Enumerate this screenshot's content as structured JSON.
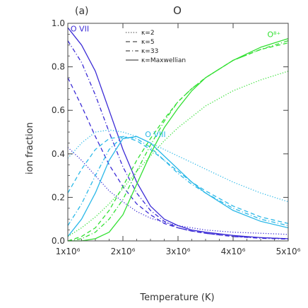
{
  "chart_data": {
    "type": "line",
    "panel_label": "(a)",
    "title": "O",
    "xlabel": "Temperature (K)",
    "ylabel": "ion fraction",
    "xlim": [
      1000000,
      5000000
    ],
    "ylim": [
      0,
      1
    ],
    "xticks": [
      {
        "value": 1000000,
        "label": "1x10⁶"
      },
      {
        "value": 2000000,
        "label": "2x10⁶"
      },
      {
        "value": 3000000,
        "label": "3x10⁶"
      },
      {
        "value": 4000000,
        "label": "4x10⁶"
      },
      {
        "value": 5000000,
        "label": "5x10⁶"
      }
    ],
    "yticks": [
      {
        "value": 0.0,
        "label": "0.0"
      },
      {
        "value": 0.2,
        "label": "0.2"
      },
      {
        "value": 0.4,
        "label": "0.4"
      },
      {
        "value": 0.6,
        "label": "0.6"
      },
      {
        "value": 0.8,
        "label": "0.8"
      },
      {
        "value": 1.0,
        "label": "1.0"
      }
    ],
    "legend_position": "top-center",
    "legend": [
      {
        "label": "κ=2",
        "dash": "dotted"
      },
      {
        "label": "κ=5",
        "dash": "dashed"
      },
      {
        "label": "κ=33",
        "dash": "dashdot"
      },
      {
        "label": "κ=Maxwellian",
        "dash": "solid"
      }
    ],
    "ions": [
      {
        "name": "O VII",
        "color": "#3b2bd6",
        "label_x": 1050000,
        "label_y": 0.975
      },
      {
        "name": "O VIII",
        "color": "#2ab8e8",
        "label_x": 2400000,
        "label_y": 0.49
      },
      {
        "name": "O⁸⁺",
        "color": "#33e033",
        "label_x": 4620000,
        "label_y": 0.95
      }
    ],
    "series": [
      {
        "ion": "O VII",
        "kappa": "κ=2",
        "dash": "dotted",
        "x": [
          1000000,
          1250000,
          1500000,
          1750000,
          2000000,
          2250000,
          2500000,
          2750000,
          3000000,
          3250000,
          3500000,
          4000000,
          4500000,
          5000000
        ],
        "y": [
          0.43,
          0.37,
          0.3,
          0.23,
          0.18,
          0.135,
          0.105,
          0.085,
          0.07,
          0.06,
          0.05,
          0.04,
          0.035,
          0.03
        ]
      },
      {
        "ion": "O VII",
        "kappa": "κ=5",
        "dash": "dashed",
        "x": [
          1000000,
          1250000,
          1500000,
          1750000,
          2000000,
          2250000,
          2500000,
          2750000,
          3000000,
          3250000,
          3500000,
          4000000,
          4500000,
          5000000
        ],
        "y": [
          0.75,
          0.62,
          0.48,
          0.35,
          0.25,
          0.17,
          0.12,
          0.08,
          0.06,
          0.045,
          0.035,
          0.02,
          0.015,
          0.01
        ]
      },
      {
        "ion": "O VII",
        "kappa": "κ=33",
        "dash": "dashdot",
        "x": [
          1000000,
          1250000,
          1500000,
          1750000,
          2000000,
          2250000,
          2500000,
          2750000,
          3000000,
          3250000,
          3500000,
          4000000,
          4500000,
          5000000
        ],
        "y": [
          0.92,
          0.82,
          0.67,
          0.5,
          0.34,
          0.22,
          0.14,
          0.09,
          0.06,
          0.045,
          0.035,
          0.02,
          0.012,
          0.008
        ]
      },
      {
        "ion": "O VII",
        "kappa": "κ=Maxwellian",
        "dash": "solid",
        "x": [
          1000000,
          1250000,
          1500000,
          1750000,
          2000000,
          2250000,
          2500000,
          2750000,
          3000000,
          3250000,
          3500000,
          4000000,
          4500000,
          5000000
        ],
        "y": [
          0.98,
          0.9,
          0.78,
          0.6,
          0.42,
          0.27,
          0.16,
          0.1,
          0.07,
          0.05,
          0.04,
          0.025,
          0.015,
          0.01
        ]
      },
      {
        "ion": "O VIII",
        "kappa": "κ=2",
        "dash": "dotted",
        "x": [
          1000000,
          1250000,
          1500000,
          1750000,
          2000000,
          2250000,
          2500000,
          2750000,
          3000000,
          3250000,
          3500000,
          4000000,
          4500000,
          5000000
        ],
        "y": [
          0.38,
          0.45,
          0.5,
          0.51,
          0.5,
          0.48,
          0.45,
          0.42,
          0.39,
          0.36,
          0.33,
          0.27,
          0.22,
          0.18
        ]
      },
      {
        "ion": "O VIII",
        "kappa": "κ=5",
        "dash": "dashed",
        "x": [
          1000000,
          1250000,
          1500000,
          1750000,
          2000000,
          2250000,
          2500000,
          2750000,
          3000000,
          3250000,
          3500000,
          4000000,
          4500000,
          5000000
        ],
        "y": [
          0.22,
          0.33,
          0.42,
          0.47,
          0.48,
          0.46,
          0.42,
          0.37,
          0.32,
          0.27,
          0.23,
          0.16,
          0.11,
          0.08
        ]
      },
      {
        "ion": "O VIII",
        "kappa": "κ=33",
        "dash": "dashdot",
        "x": [
          1000000,
          1250000,
          1500000,
          1750000,
          2000000,
          2250000,
          2500000,
          2750000,
          3000000,
          3250000,
          3500000,
          4000000,
          4500000,
          5000000
        ],
        "y": [
          0.07,
          0.17,
          0.3,
          0.42,
          0.48,
          0.47,
          0.43,
          0.37,
          0.31,
          0.26,
          0.22,
          0.15,
          0.1,
          0.07
        ]
      },
      {
        "ion": "O VIII",
        "kappa": "κ=Maxwellian",
        "dash": "solid",
        "x": [
          1000000,
          1250000,
          1500000,
          1750000,
          2000000,
          2250000,
          2500000,
          2750000,
          3000000,
          3250000,
          3500000,
          4000000,
          4500000,
          5000000
        ],
        "y": [
          0.02,
          0.1,
          0.22,
          0.37,
          0.47,
          0.48,
          0.45,
          0.39,
          0.33,
          0.27,
          0.22,
          0.14,
          0.09,
          0.06
        ]
      },
      {
        "ion": "O⁸⁺",
        "kappa": "κ=2",
        "dash": "dotted",
        "x": [
          1000000,
          1250000,
          1500000,
          1750000,
          2000000,
          2250000,
          2500000,
          2750000,
          3000000,
          3250000,
          3500000,
          4000000,
          4500000,
          5000000
        ],
        "y": [
          0.02,
          0.06,
          0.11,
          0.17,
          0.24,
          0.32,
          0.39,
          0.46,
          0.52,
          0.57,
          0.62,
          0.69,
          0.74,
          0.78
        ]
      },
      {
        "ion": "O⁸⁺",
        "kappa": "κ=5",
        "dash": "dashed",
        "x": [
          1000000,
          1250000,
          1500000,
          1750000,
          2000000,
          2250000,
          2500000,
          2750000,
          3000000,
          3250000,
          3500000,
          4000000,
          4500000,
          5000000
        ],
        "y": [
          0.0,
          0.02,
          0.06,
          0.14,
          0.25,
          0.37,
          0.47,
          0.56,
          0.64,
          0.7,
          0.75,
          0.83,
          0.88,
          0.91
        ]
      },
      {
        "ion": "O⁸⁺",
        "kappa": "κ=33",
        "dash": "dashdot",
        "x": [
          1000000,
          1250000,
          1500000,
          1750000,
          2000000,
          2250000,
          2500000,
          2750000,
          3000000,
          3250000,
          3500000,
          4000000,
          4500000,
          5000000
        ],
        "y": [
          0.0,
          0.01,
          0.04,
          0.1,
          0.19,
          0.32,
          0.44,
          0.55,
          0.64,
          0.7,
          0.75,
          0.83,
          0.88,
          0.92
        ]
      },
      {
        "ion": "O⁸⁺",
        "kappa": "κ=Maxwellian",
        "dash": "solid",
        "x": [
          1000000,
          1250000,
          1500000,
          1750000,
          2000000,
          2250000,
          2500000,
          2750000,
          3000000,
          3250000,
          3500000,
          4000000,
          4500000,
          5000000
        ],
        "y": [
          0.0,
          0.0,
          0.01,
          0.04,
          0.12,
          0.26,
          0.4,
          0.52,
          0.61,
          0.69,
          0.75,
          0.83,
          0.89,
          0.93
        ]
      }
    ]
  }
}
